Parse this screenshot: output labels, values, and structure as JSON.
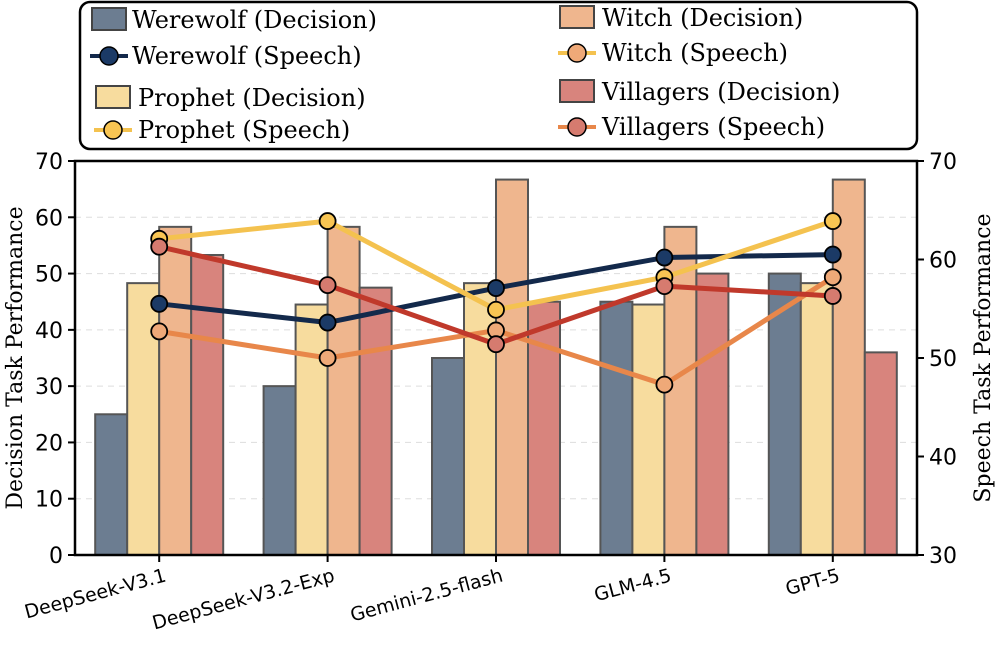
{
  "chart_data": {
    "type": "bar",
    "categories": [
      "DeepSeek-V3.1",
      "DeepSeek-V3.2-Exp",
      "Gemini-2.5-flash",
      "GLM-4.5",
      "GPT-5"
    ],
    "ylabel": "Decision Task Performance",
    "y2label": "Speech Task Performance",
    "ylim": [
      0,
      70
    ],
    "y2lim": [
      30,
      70
    ],
    "yticks": [
      "0",
      "10",
      "20",
      "30",
      "40",
      "50",
      "60",
      "70"
    ],
    "y2ticks": [
      "30",
      "40",
      "50",
      "60",
      "70"
    ],
    "grid": true,
    "legend_position": "top",
    "bar_series": [
      {
        "name": "Werewolf (Decision)",
        "color": "#6c7d91",
        "values": [
          25,
          30,
          35,
          45,
          50
        ]
      },
      {
        "name": "Prophet (Decision)",
        "color": "#f7dc9e",
        "values": [
          48.3,
          44.5,
          48.3,
          44.5,
          48.3
        ]
      },
      {
        "name": "Witch (Decision)",
        "color": "#efb68e",
        "values": [
          58.3,
          58.3,
          66.7,
          58.3,
          66.7
        ]
      },
      {
        "name": "Villagers (Decision)",
        "color": "#d8847d",
        "values": [
          53.3,
          47.5,
          45,
          50,
          36
        ]
      }
    ],
    "line_series": [
      {
        "name": "Werewolf (Speech)",
        "color": "#13294b",
        "values": [
          55.5,
          53.6,
          57.1,
          60.2,
          60.5
        ]
      },
      {
        "name": "Prophet (Speech)",
        "color": "#f4c24f",
        "values": [
          62.1,
          63.9,
          54.9,
          58.2,
          63.9
        ]
      },
      {
        "name": "Witch (Speech)",
        "color": "#e8874a",
        "values": [
          52.7,
          50,
          52.8,
          47.3,
          58.2
        ]
      },
      {
        "name": "Villagers (Speech)",
        "color": "#c0392b",
        "values": [
          61.3,
          57.4,
          51.4,
          57.3,
          56.3
        ]
      }
    ],
    "line_marker_colors": [
      "#1b3a66",
      "#f8c553",
      "#efa978",
      "#d67b6f"
    ]
  },
  "legend": {
    "werewolf_decision": "Werewolf (Decision)",
    "werewolf_speech": "Werewolf (Speech)",
    "prophet_decision": "Prophet (Decision)",
    "prophet_speech": "Prophet (Speech)",
    "witch_decision": "Witch (Decision)",
    "witch_speech": "Witch (Speech)",
    "villagers_decision": "Villagers (Decision)",
    "villagers_speech": "Villagers (Speech)"
  }
}
